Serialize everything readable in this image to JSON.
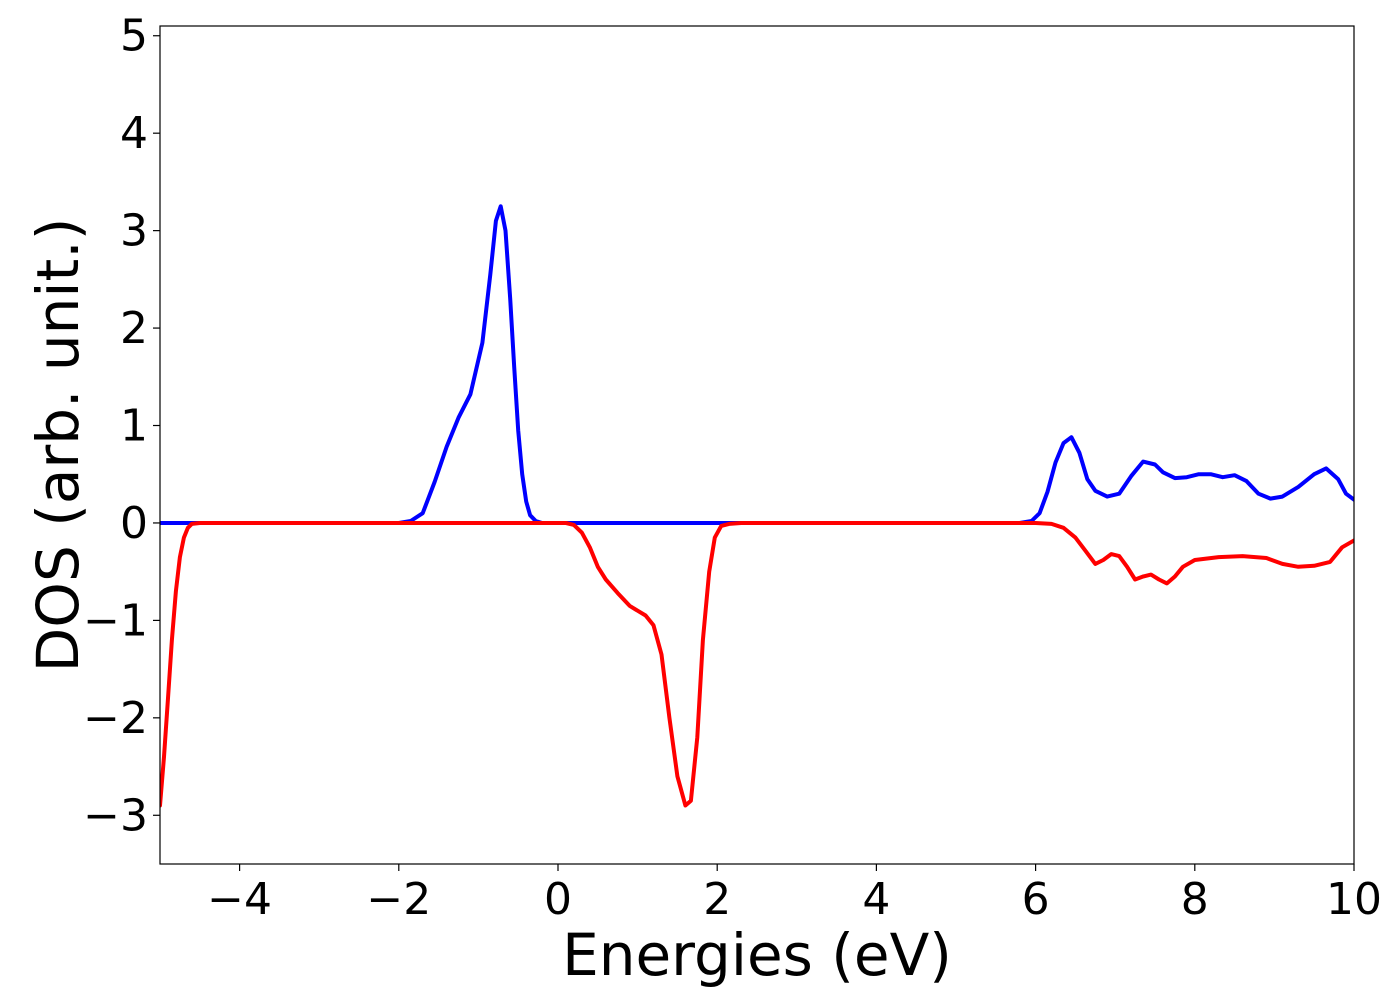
{
  "chart_data": {
    "type": "line",
    "title": "",
    "xlabel": "Energies (eV)",
    "ylabel": "DOS (arb. unit.)",
    "xlim": [
      -5,
      10
    ],
    "ylim": [
      -3.5,
      5.1
    ],
    "x_ticks": [
      -4,
      -2,
      0,
      2,
      4,
      6,
      8,
      10
    ],
    "x_tick_labels": [
      "−4",
      "−2",
      "0",
      "2",
      "4",
      "6",
      "8",
      "10"
    ],
    "y_ticks": [
      -3,
      -2,
      -1,
      0,
      1,
      2,
      3,
      4,
      5
    ],
    "y_tick_labels": [
      "−3",
      "−2",
      "−1",
      "0",
      "1",
      "2",
      "3",
      "4",
      "5"
    ],
    "grid": false,
    "legend": "none",
    "series": [
      {
        "color": "#0000ff",
        "x": [
          -5,
          -2,
          -1.85,
          -1.7,
          -1.55,
          -1.4,
          -1.25,
          -1.1,
          -0.95,
          -0.85,
          -0.78,
          -0.72,
          -0.66,
          -0.6,
          -0.55,
          -0.5,
          -0.45,
          -0.4,
          -0.35,
          -0.28,
          -0.2,
          -0.1,
          0,
          5.8,
          5.95,
          6.05,
          6.15,
          6.25,
          6.35,
          6.45,
          6.55,
          6.65,
          6.75,
          6.9,
          7.05,
          7.2,
          7.35,
          7.5,
          7.6,
          7.75,
          7.9,
          8.05,
          8.2,
          8.35,
          8.5,
          8.65,
          8.8,
          8.95,
          9.1,
          9.3,
          9.5,
          9.65,
          9.8,
          9.9,
          10
        ],
        "y": [
          0,
          0,
          0.02,
          0.1,
          0.42,
          0.78,
          1.08,
          1.32,
          1.85,
          2.55,
          3.1,
          3.25,
          3.0,
          2.3,
          1.6,
          0.95,
          0.5,
          0.22,
          0.08,
          0.02,
          0,
          0,
          0,
          0,
          0.02,
          0.1,
          0.32,
          0.62,
          0.82,
          0.88,
          0.72,
          0.45,
          0.33,
          0.27,
          0.3,
          0.48,
          0.63,
          0.6,
          0.52,
          0.46,
          0.47,
          0.5,
          0.5,
          0.47,
          0.49,
          0.43,
          0.3,
          0.25,
          0.27,
          0.37,
          0.5,
          0.56,
          0.45,
          0.3,
          0.24
        ]
      },
      {
        "color": "#ff0000",
        "x": [
          -5,
          -4.95,
          -4.9,
          -4.85,
          -4.8,
          -4.75,
          -4.7,
          -4.65,
          -4.6,
          -4.5,
          -4.4,
          0.1,
          0.2,
          0.3,
          0.4,
          0.5,
          0.6,
          0.75,
          0.9,
          1.0,
          1.1,
          1.2,
          1.3,
          1.4,
          1.5,
          1.6,
          1.67,
          1.75,
          1.82,
          1.9,
          1.97,
          2.05,
          2.15,
          2.3,
          6.0,
          6.2,
          6.35,
          6.5,
          6.62,
          6.75,
          6.85,
          6.95,
          7.05,
          7.15,
          7.25,
          7.35,
          7.45,
          7.55,
          7.65,
          7.75,
          7.85,
          8.0,
          8.3,
          8.6,
          8.9,
          9.1,
          9.3,
          9.5,
          9.7,
          9.85,
          10
        ],
        "y": [
          -2.9,
          -2.4,
          -1.8,
          -1.2,
          -0.7,
          -0.35,
          -0.15,
          -0.05,
          -0.01,
          0,
          0,
          0,
          -0.02,
          -0.1,
          -0.25,
          -0.45,
          -0.58,
          -0.72,
          -0.85,
          -0.9,
          -0.95,
          -1.05,
          -1.35,
          -2.0,
          -2.6,
          -2.9,
          -2.85,
          -2.2,
          -1.2,
          -0.5,
          -0.15,
          -0.03,
          -0.01,
          0,
          0,
          -0.01,
          -0.05,
          -0.15,
          -0.28,
          -0.42,
          -0.38,
          -0.32,
          -0.34,
          -0.45,
          -0.58,
          -0.55,
          -0.53,
          -0.58,
          -0.62,
          -0.55,
          -0.45,
          -0.38,
          -0.35,
          -0.34,
          -0.36,
          -0.42,
          -0.45,
          -0.44,
          -0.4,
          -0.25,
          -0.18
        ]
      }
    ]
  }
}
